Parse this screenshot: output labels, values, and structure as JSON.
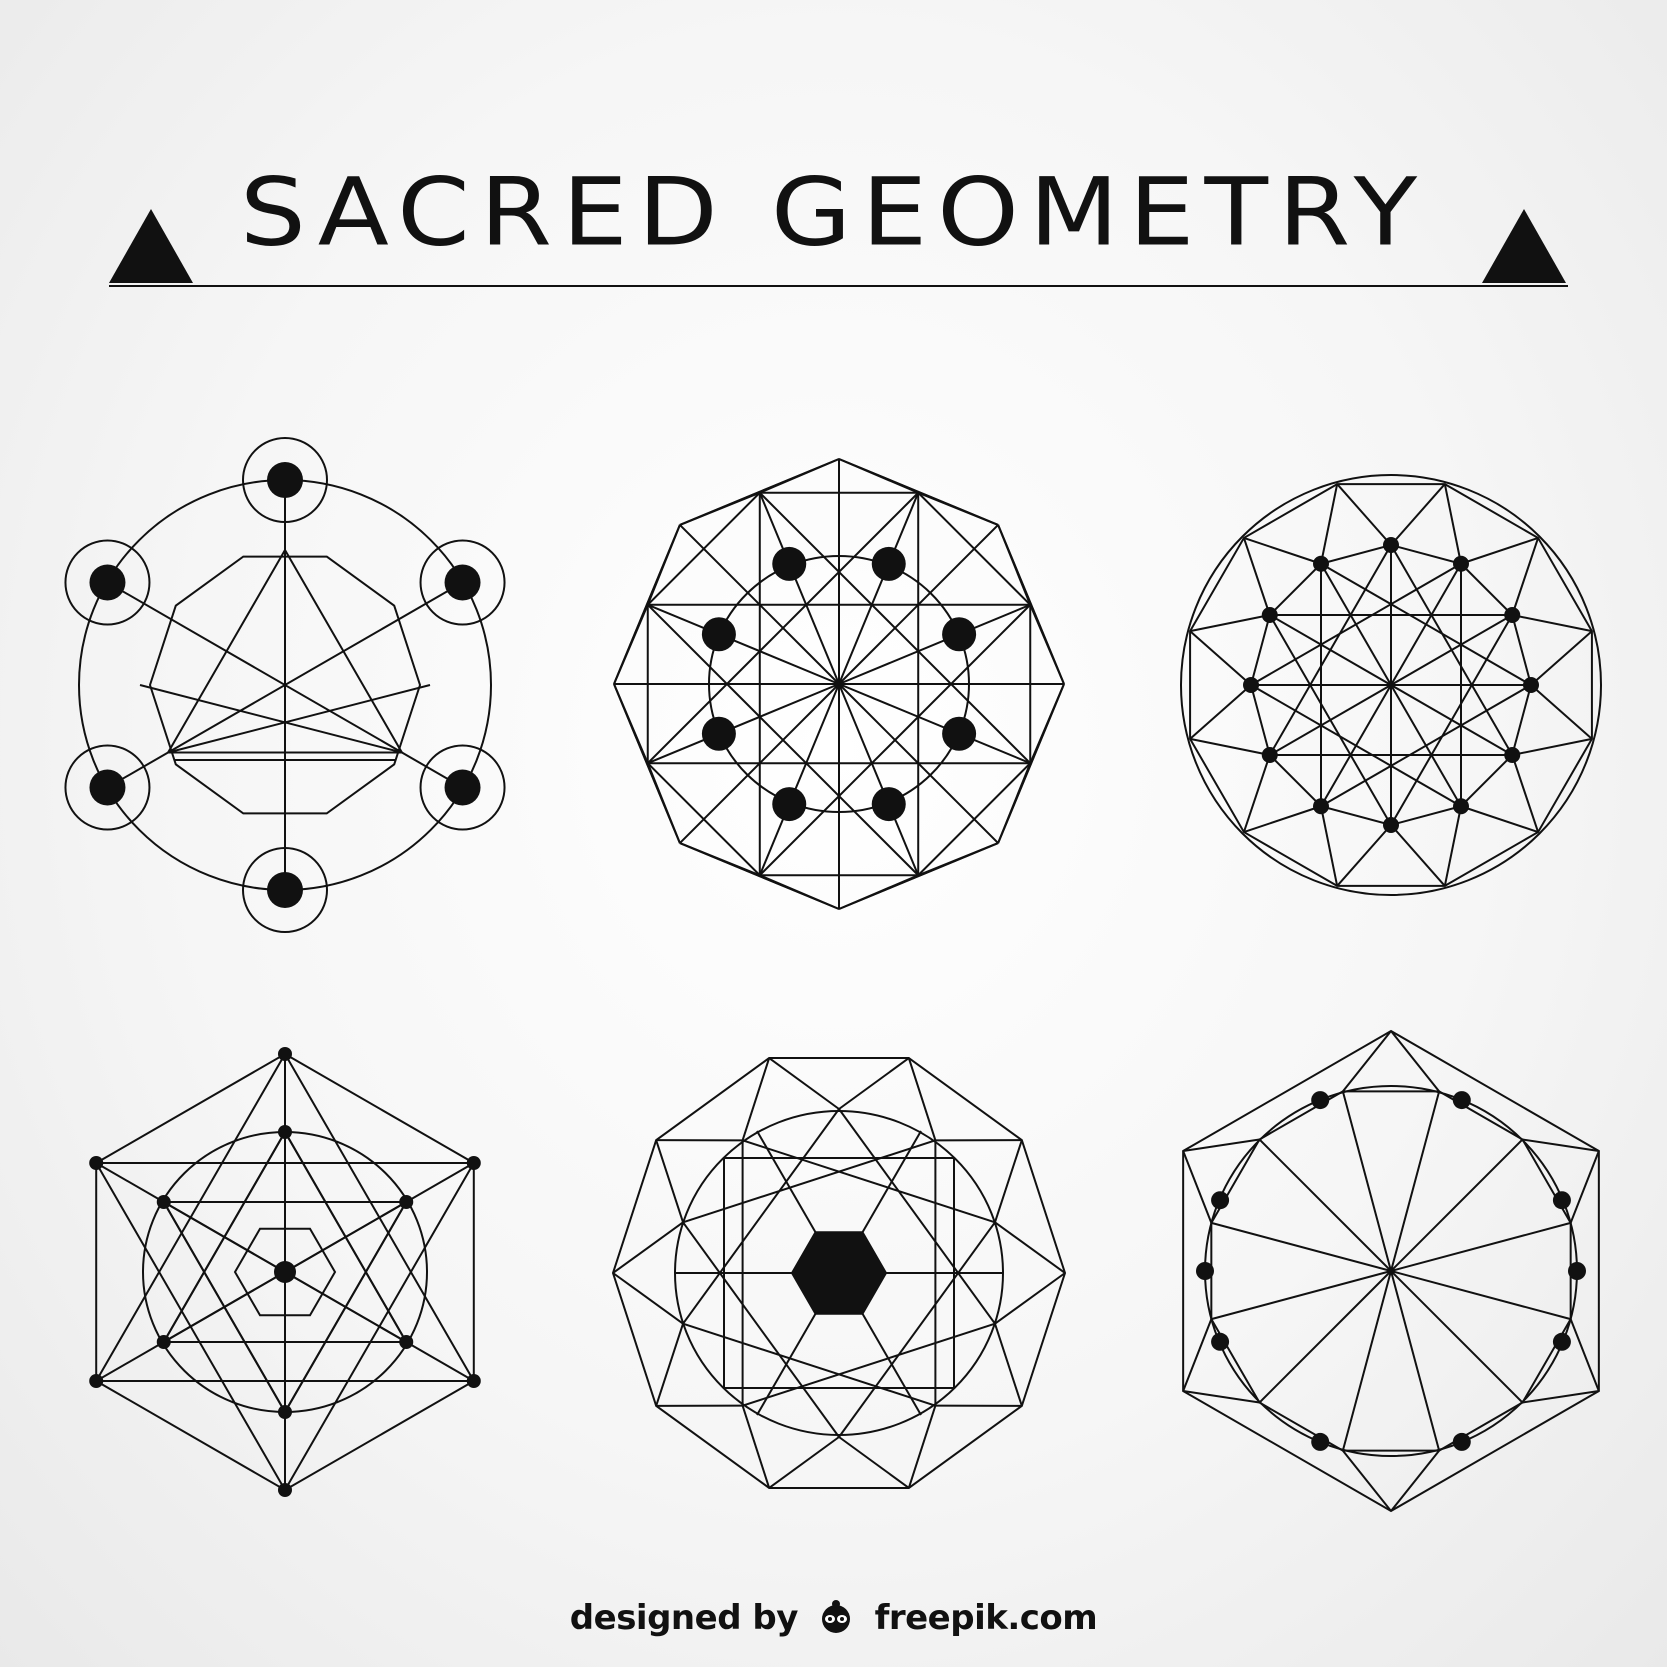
{
  "header": {
    "title": "SACRED GEOMETRY"
  },
  "icons": [
    "triangle-icon",
    "triangle-icon",
    "freepik-logo-icon"
  ],
  "credit": {
    "prefix": "designed by",
    "brand": "freepik.com"
  },
  "colors": {
    "ink": "#111111",
    "background": "#f4f4f4"
  }
}
